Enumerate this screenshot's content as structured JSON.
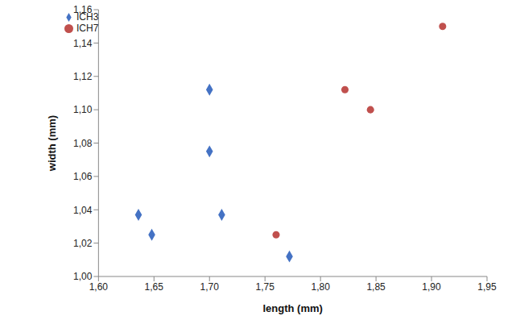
{
  "chart_data": {
    "type": "scatter",
    "x_label": "length (mm)",
    "y_label": "width (mm)",
    "xlim": [
      1.6,
      1.95
    ],
    "ylim": [
      1.0,
      1.16
    ],
    "xticks": [
      {
        "value": 1.6,
        "label": "1,60"
      },
      {
        "value": 1.65,
        "label": "1,65"
      },
      {
        "value": 1.7,
        "label": "1,70"
      },
      {
        "value": 1.75,
        "label": "1,75"
      },
      {
        "value": 1.8,
        "label": "1,80"
      },
      {
        "value": 1.85,
        "label": "1,85"
      },
      {
        "value": 1.9,
        "label": "1,90"
      },
      {
        "value": 1.95,
        "label": "1,95"
      }
    ],
    "yticks": [
      {
        "value": 1.0,
        "label": "1,00"
      },
      {
        "value": 1.02,
        "label": "1,02"
      },
      {
        "value": 1.04,
        "label": "1,04"
      },
      {
        "value": 1.06,
        "label": "1,06"
      },
      {
        "value": 1.08,
        "label": "1,08"
      },
      {
        "value": 1.1,
        "label": "1,10"
      },
      {
        "value": 1.12,
        "label": "1,12"
      },
      {
        "value": 1.14,
        "label": "1,14"
      },
      {
        "value": 1.16,
        "label": "1,16"
      }
    ],
    "grid": false,
    "legend": "upper left",
    "series": [
      {
        "name": "ICH3",
        "color": "#4472c4",
        "marker": "diamond",
        "x": [
          1.636,
          1.648,
          1.7,
          1.7,
          1.711,
          1.772
        ],
        "values": [
          1.037,
          1.025,
          1.112,
          1.075,
          1.037,
          1.012
        ]
      },
      {
        "name": "ICH7",
        "color": "#c0504d",
        "marker": "circle",
        "x": [
          1.76,
          1.822,
          1.845,
          1.91
        ],
        "values": [
          1.025,
          1.112,
          1.1,
          1.15
        ]
      }
    ]
  }
}
